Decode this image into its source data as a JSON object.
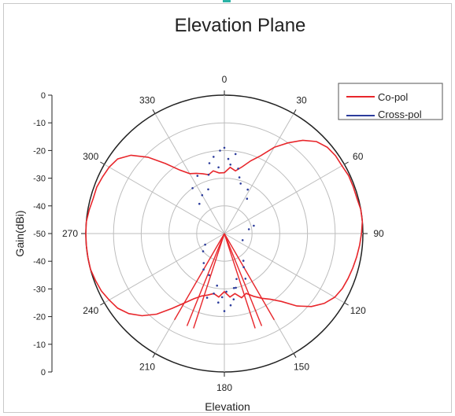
{
  "chart_data": {
    "type": "polar",
    "title": "Elevation Plane",
    "xlabel": "Elevation",
    "ylabel": "Gain(dBi)",
    "angle_ticks": [
      "0",
      "30",
      "60",
      "90",
      "120",
      "150",
      "180",
      "210",
      "240",
      "270",
      "300",
      "330"
    ],
    "radial_ticks_upper": [
      "0",
      "-10",
      "-20",
      "-30",
      "-40",
      "-50"
    ],
    "radial_ticks_lower": [
      "-40",
      "-30",
      "-20",
      "-10",
      "0"
    ],
    "radial_range": [
      -50,
      0
    ],
    "grid": true,
    "legend_position": "top-right",
    "series": [
      {
        "name": "Co-pol",
        "color": "#e8262b",
        "angles": [
          0,
          5,
          10,
          15,
          20,
          25,
          30,
          35,
          40,
          45,
          50,
          55,
          60,
          65,
          70,
          75,
          80,
          85,
          90,
          95,
          100,
          105,
          110,
          115,
          120,
          125,
          130,
          135,
          140,
          145,
          150,
          155,
          160,
          165,
          170,
          175,
          180,
          185,
          190,
          195,
          200,
          205,
          210,
          215,
          220,
          225,
          230,
          235,
          240,
          245,
          250,
          255,
          260,
          265,
          270,
          275,
          280,
          285,
          290,
          295,
          300,
          305,
          310,
          315,
          320,
          325,
          330,
          335,
          340,
          345,
          350,
          355
        ],
        "gain_db": [
          -28,
          -26,
          -27,
          -25,
          -22,
          -19,
          -14,
          -10,
          -6,
          -3,
          -1.5,
          -1,
          -1,
          -0.5,
          -0.5,
          -0.5,
          0,
          0,
          -0.5,
          -1,
          -1.5,
          -2,
          -2.5,
          -3,
          -4,
          -6,
          -9,
          -13,
          -18,
          -21,
          -23,
          -25,
          -27,
          -26,
          -28,
          -27,
          -29,
          -27,
          -28,
          -27,
          -26,
          -24,
          -21,
          -17,
          -12,
          -8,
          -5,
          -3,
          -2,
          -1,
          -0.5,
          0,
          0,
          0,
          0,
          0,
          -0.5,
          -1,
          -1,
          -1.5,
          -2,
          -3,
          -6,
          -11,
          -17,
          -22,
          -25,
          -26,
          -27,
          -28,
          -27,
          -28
        ]
      },
      {
        "name": "Cross-pol",
        "color": "#2c3c9c",
        "angles": [
          345,
          348,
          352,
          355,
          357,
          0,
          3,
          5,
          8,
          12,
          15,
          18,
          335,
          340,
          28,
          33,
          170,
          172,
          175,
          178,
          180,
          182,
          185,
          188,
          190,
          165,
          168,
          195,
          200,
          150,
          155,
          145,
          210,
          215,
          230,
          240,
          75,
          80,
          110,
          320,
          325,
          330
        ],
        "gain_db": [
          -28,
          -24,
          -22,
          -26,
          -20,
          -19,
          -23,
          -25,
          -21,
          -26,
          -29,
          -31,
          -27,
          -33,
          -32,
          -35,
          -30,
          -26,
          -24,
          -29,
          -22,
          -27,
          -25,
          -31,
          -28,
          -33,
          -30,
          -26,
          -34,
          -36,
          -32,
          -38,
          -35,
          -37,
          -40,
          -42,
          -39,
          -41,
          -43,
          -36,
          -30,
          -34
        ]
      }
    ]
  }
}
